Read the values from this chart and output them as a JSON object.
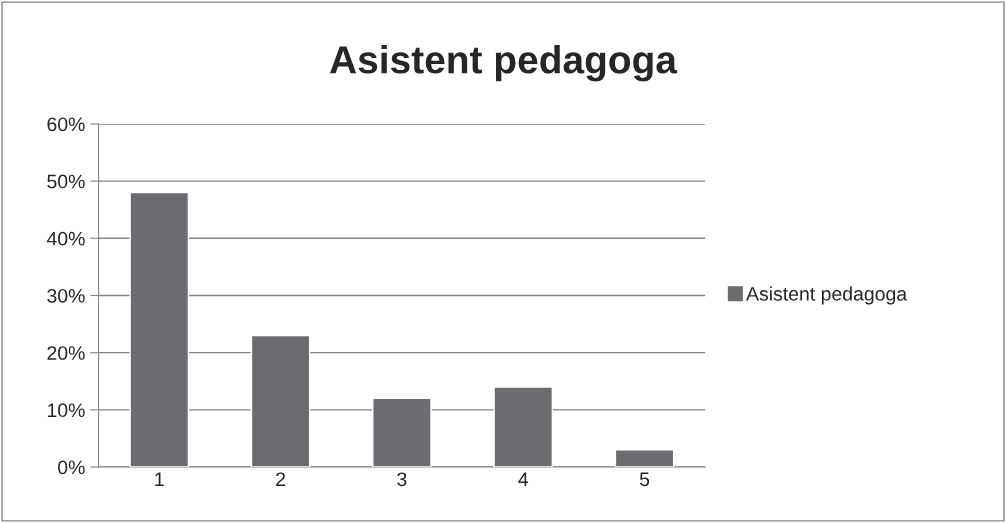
{
  "chart_data": {
    "type": "bar",
    "title": "Asistent pedagoga",
    "categories": [
      "1",
      "2",
      "3",
      "4",
      "5"
    ],
    "series": [
      {
        "name": "Asistent pedagoga",
        "color": "#6c6b70",
        "values": [
          0.48,
          0.23,
          0.12,
          0.14,
          0.03
        ]
      }
    ],
    "ylim": [
      0,
      0.6
    ],
    "yticks": [
      {
        "value": 0,
        "label": "0%"
      },
      {
        "value": 0.1,
        "label": "10%"
      },
      {
        "value": 0.2,
        "label": "20%"
      },
      {
        "value": 0.3,
        "label": "30%"
      },
      {
        "value": 0.4,
        "label": "40%"
      },
      {
        "value": 0.5,
        "label": "50%"
      },
      {
        "value": 0.6,
        "label": "60%"
      }
    ],
    "grid": "y",
    "legend": "right"
  }
}
